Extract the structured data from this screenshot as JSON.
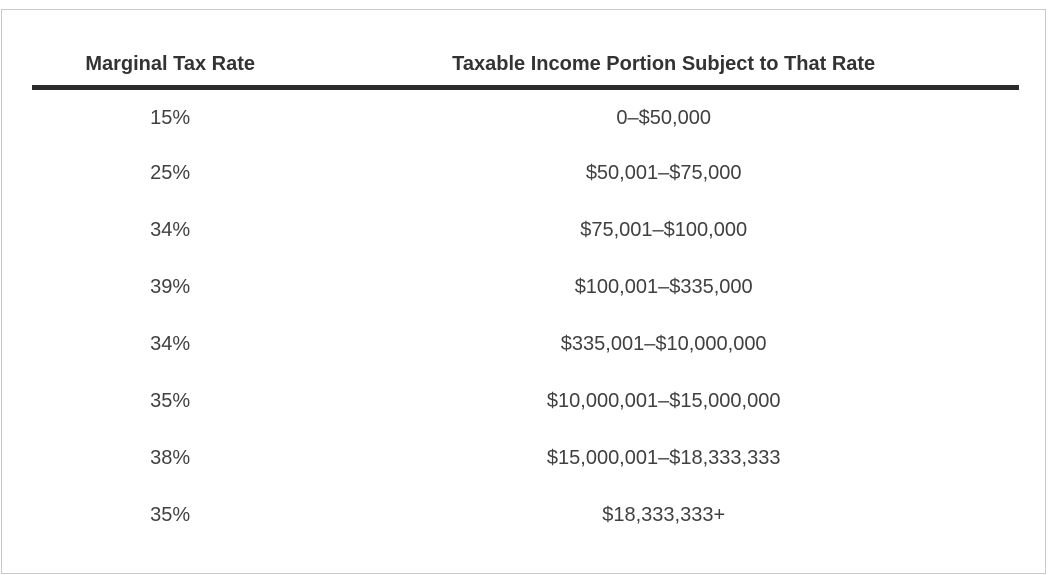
{
  "colors": {
    "page_bg": "#ffffff",
    "card_border": "#c9c9c9",
    "header_text": "#333333",
    "body_text": "#404040",
    "header_rule": "#2b2b2b"
  },
  "chart_data": {
    "type": "table",
    "title": "",
    "columns": [
      "Marginal Tax Rate",
      "Taxable Income Portion Subject to That Rate"
    ],
    "rows": [
      [
        "15%",
        "0–$50,000"
      ],
      [
        "25%",
        "$50,001–$75,000"
      ],
      [
        "34%",
        "$75,001–$100,000"
      ],
      [
        "39%",
        "$100,001–$335,000"
      ],
      [
        "34%",
        "$335,001–$10,000,000"
      ],
      [
        "35%",
        "$10,000,001–$15,000,000"
      ],
      [
        "38%",
        "$15,000,001–$18,333,333"
      ],
      [
        "35%",
        "$18,333,333+"
      ]
    ]
  }
}
